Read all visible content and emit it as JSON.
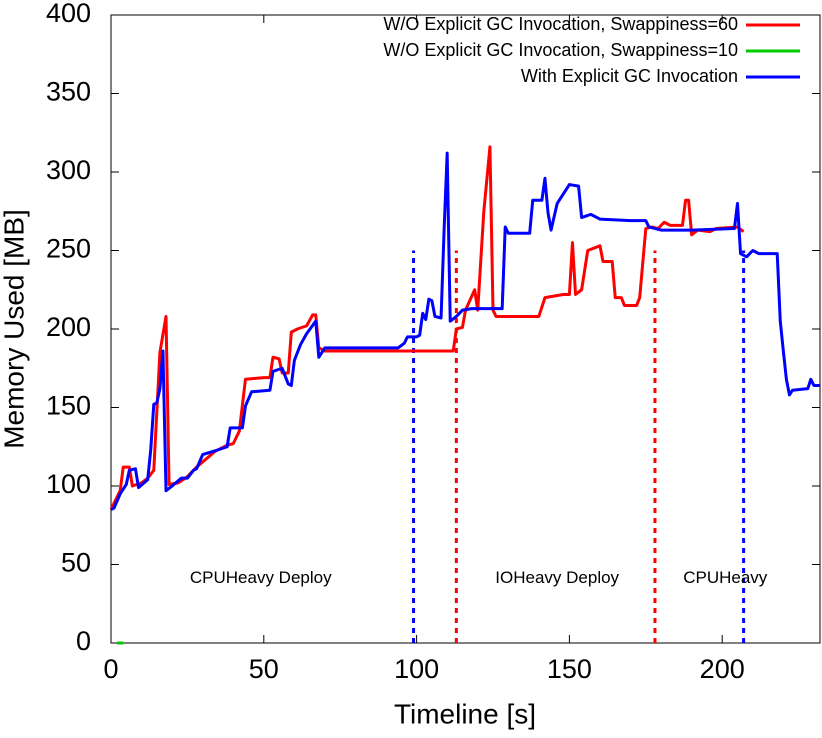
{
  "chart_data": {
    "type": "line",
    "xlabel": "Timeline [s]",
    "ylabel": "Memory Used [MB]",
    "xlim": [
      0,
      232
    ],
    "ylim": [
      0,
      400
    ],
    "xticks": [
      0,
      50,
      100,
      150,
      200
    ],
    "yticks": [
      0,
      50,
      100,
      150,
      200,
      250,
      300,
      350,
      400
    ],
    "legend": "top-right",
    "series": [
      {
        "name": "W/O Explicit GC Invocation, Swappiness=60",
        "color": "#ff0000",
        "x": [
          0,
          3,
          4,
          6,
          7,
          10,
          12,
          14,
          16,
          18,
          19,
          22,
          25,
          28,
          31,
          34,
          38,
          40,
          42,
          44,
          50,
          52,
          53,
          55,
          56,
          58,
          59,
          61,
          64,
          66,
          67,
          68,
          70,
          80,
          100,
          110,
          112,
          113,
          115,
          116,
          119,
          120,
          122,
          124,
          125,
          126,
          140,
          142,
          148,
          150,
          151,
          152,
          154,
          156,
          160,
          161,
          164,
          165,
          167,
          168,
          172,
          173,
          175,
          177,
          179,
          181,
          183,
          187,
          188,
          189,
          190,
          192,
          196,
          198,
          205,
          207
        ],
        "values": [
          85,
          97,
          112,
          112,
          100,
          102,
          105,
          110,
          185,
          208,
          101,
          102,
          106,
          112,
          117,
          122,
          126,
          127,
          135,
          168,
          169,
          169,
          182,
          181,
          172,
          172,
          198,
          200,
          202,
          209,
          209,
          188,
          186,
          186,
          186,
          186,
          186,
          200,
          201,
          212,
          225,
          212,
          275,
          316,
          212,
          208,
          208,
          220,
          222,
          222,
          255,
          222,
          225,
          250,
          253,
          243,
          243,
          220,
          220,
          215,
          215,
          220,
          264,
          265,
          264,
          268,
          266,
          266,
          282,
          282,
          260,
          263,
          262,
          264,
          265,
          262
        ]
      },
      {
        "name": "W/O Explicit GC Invocation, Swappiness=10",
        "color": "#00cc00",
        "x": [
          2,
          4
        ],
        "values": [
          0,
          0
        ]
      },
      {
        "name": "With Explicit GC Invocation",
        "color": "#0000ff",
        "x": [
          0,
          1,
          3,
          5,
          6,
          8,
          9,
          12,
          13,
          14,
          15,
          16,
          17,
          18,
          20,
          23,
          25,
          27,
          28,
          30,
          35,
          38,
          39,
          43,
          44,
          46,
          52,
          53,
          56,
          58,
          59,
          60,
          62,
          64,
          67,
          68,
          70,
          76,
          90,
          94,
          96,
          97,
          100,
          101,
          102,
          103,
          104,
          105,
          106,
          108,
          109,
          110,
          111,
          113,
          115,
          118,
          125,
          128,
          129,
          130,
          137,
          138,
          141,
          142,
          143,
          144,
          146,
          150,
          153,
          154,
          157,
          160,
          170,
          175,
          176,
          180,
          190,
          204,
          205,
          206,
          208,
          210,
          212,
          218,
          219,
          220,
          221,
          222,
          223,
          228,
          229,
          230,
          232
        ],
        "values": [
          85,
          86,
          95,
          101,
          110,
          111,
          99,
          104,
          123,
          152,
          153,
          162,
          186,
          97,
          100,
          105,
          105,
          110,
          111,
          120,
          123,
          125,
          137,
          137,
          151,
          160,
          161,
          173,
          175,
          165,
          164,
          180,
          190,
          197,
          205,
          182,
          188,
          188,
          188,
          188,
          191,
          195,
          195,
          196,
          210,
          206,
          219,
          218,
          208,
          207,
          263,
          312,
          205,
          208,
          212,
          213,
          213,
          213,
          265,
          261,
          261,
          282,
          282,
          296,
          274,
          263,
          280,
          292,
          291,
          271,
          273,
          270,
          269,
          269,
          265,
          263,
          263,
          264,
          280,
          248,
          246,
          250,
          248,
          248,
          205,
          186,
          168,
          158,
          161,
          162,
          168,
          164,
          164
        ]
      }
    ],
    "vlines": [
      {
        "x": 99,
        "color": "#0000ff"
      },
      {
        "x": 113,
        "color": "#ff0000"
      },
      {
        "x": 178,
        "color": "#ff0000"
      },
      {
        "x": 207,
        "color": "#0000ff"
      }
    ],
    "annotations": [
      {
        "text": "CPUHeavy Deploy",
        "x": 49,
        "y": 41
      },
      {
        "text": "IOHeavy Deploy",
        "x": 146,
        "y": 41
      },
      {
        "text": "CPUHeavy",
        "x": 201,
        "y": 41
      }
    ]
  }
}
